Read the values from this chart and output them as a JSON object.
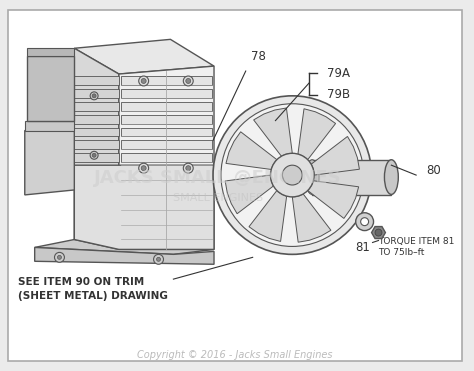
{
  "bg_color": "#ebebeb",
  "border_color": "#999999",
  "inner_bg": "#ffffff",
  "copyright": "Copyright © 2016 - Jacks Small Engines",
  "see_item_text_1": "SEE ITEM 90 ON TRIM",
  "see_item_text_2": "(SHEET METAL) DRAWING",
  "torque_text_1": "TORQUE ITEM 81",
  "torque_text_2": "TO 75lb–ft",
  "label_color": "#333333",
  "drawing_color": "#555555",
  "light_gray": "#bbbbbb",
  "mid_gray": "#888888",
  "watermark_color_1": "rgba(180,180,180,0.4)",
  "watermark_color_2": "rgba(180,180,180,0.35)",
  "label_fs": 8.5,
  "torque_fs": 6.5,
  "see_fs": 7.5,
  "copyright_fs": 7.0
}
